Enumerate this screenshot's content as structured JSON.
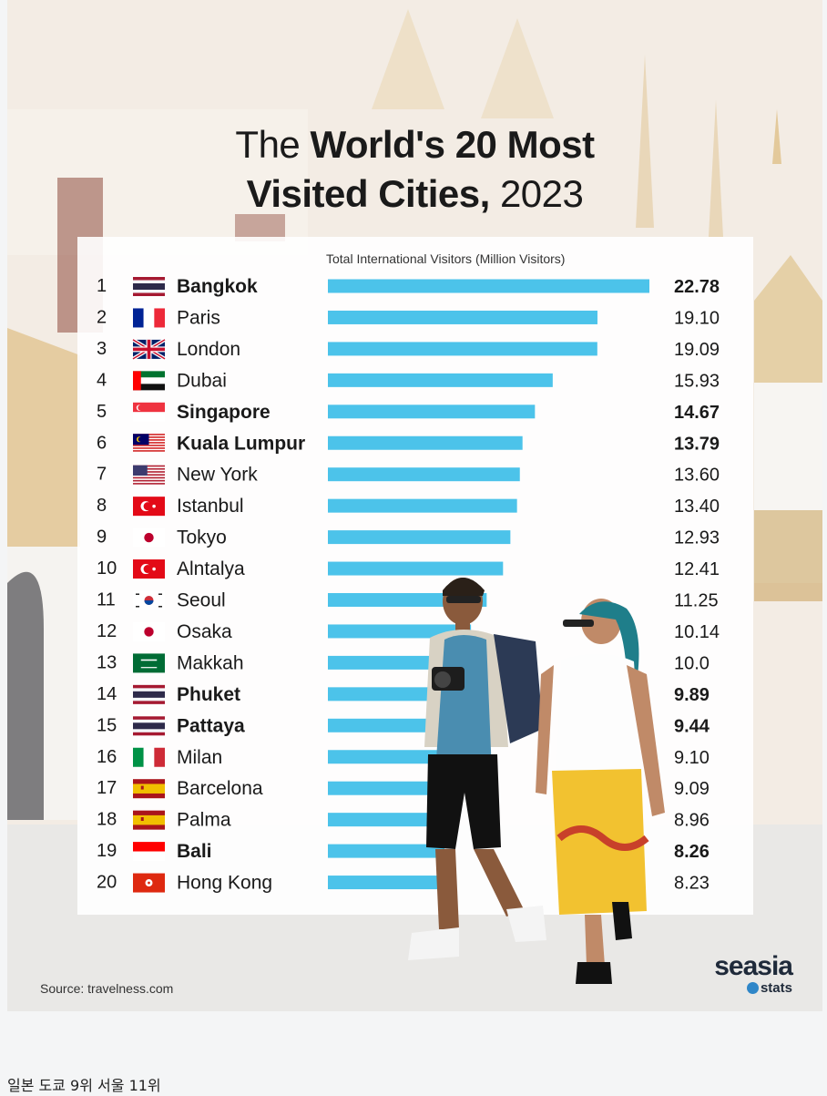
{
  "title": {
    "line1_light": "The ",
    "line1_bold": "World's 20 Most",
    "line2_bold": "Visited Cities,",
    "line2_light": " 2023"
  },
  "source": "Source: travelness.com",
  "brand": {
    "name": "seasia",
    "sub": "stats"
  },
  "caption": "일본 도쿄 9위 서울 11위",
  "colors": {
    "bar": "#4cc3ea",
    "text": "#1a1a1a",
    "panel": "#ffffff"
  },
  "chart_data": {
    "type": "bar",
    "orientation": "horizontal",
    "xlabel": "Total International Visitors (Million Visitors)",
    "grid": false,
    "categories": [
      "Bangkok",
      "Paris",
      "London",
      "Dubai",
      "Singapore",
      "Kuala Lumpur",
      "New York",
      "Istanbul",
      "Tokyo",
      "Alntalya",
      "Seoul",
      "Osaka",
      "Makkah",
      "Phuket",
      "Pattaya",
      "Milan",
      "Barcelona",
      "Palma",
      "Bali",
      "Hong Kong"
    ],
    "ranks": [
      "1",
      "2",
      "3",
      "4",
      "5",
      "6",
      "7",
      "8",
      "9",
      "10",
      "11",
      "12",
      "13",
      "14",
      "15",
      "16",
      "17",
      "18",
      "19",
      "20"
    ],
    "values": [
      22.78,
      19.1,
      19.09,
      15.93,
      14.67,
      13.79,
      13.6,
      13.4,
      12.93,
      12.41,
      11.25,
      10.14,
      10.0,
      9.89,
      9.44,
      9.1,
      9.09,
      8.96,
      8.26,
      8.23
    ],
    "value_labels": [
      "22.78",
      "19.10",
      "19.09",
      "15.93",
      "14.67",
      "13.79",
      "13.60",
      "13.40",
      "12.93",
      "12.41",
      "11.25",
      "10.14",
      "10.0",
      "9.89",
      "9.44",
      "9.10",
      "9.09",
      "8.96",
      "8.26",
      "8.23"
    ],
    "highlighted": [
      true,
      false,
      false,
      false,
      true,
      true,
      false,
      false,
      false,
      false,
      false,
      false,
      false,
      true,
      true,
      false,
      false,
      false,
      true,
      false
    ],
    "flags": [
      "thailand-flag",
      "france-flag",
      "uk-flag",
      "uae-flag",
      "singapore-flag",
      "malaysia-flag",
      "usa-flag",
      "turkey-flag",
      "japan-flag",
      "turkey-flag",
      "south-korea-flag",
      "japan-flag",
      "saudi-arabia-flag",
      "thailand-flag",
      "thailand-flag",
      "italy-flag",
      "spain-flag",
      "spain-flag",
      "indonesia-flag",
      "hong-kong-flag"
    ],
    "xlim": [
      0,
      22.78
    ]
  }
}
